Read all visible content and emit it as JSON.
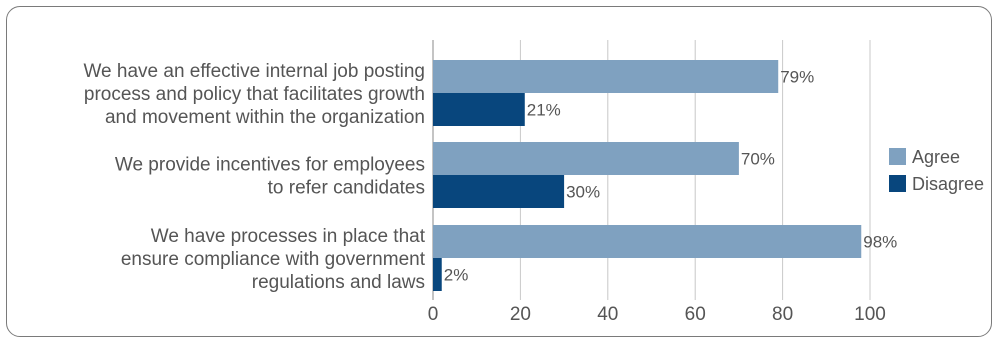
{
  "chart_data": {
    "type": "bar",
    "orientation": "horizontal",
    "categories": [
      [
        "We have an effective internal job posting",
        "process and policy that facilitates growth",
        "and movement within the organization"
      ],
      [
        "We provide incentives for employees",
        "to refer candidates"
      ],
      [
        "We have processes in place that",
        "ensure compliance with government",
        "regulations and laws"
      ]
    ],
    "series": [
      {
        "name": "Agree",
        "color": "#7fa1c0",
        "values": [
          79,
          70,
          98
        ],
        "labels": [
          "79%",
          "70%",
          "98%"
        ]
      },
      {
        "name": "Disagree",
        "color": "#08467d",
        "values": [
          21,
          30,
          2
        ],
        "labels": [
          "21%",
          "30%",
          "2%"
        ]
      }
    ],
    "xlim": [
      0,
      100
    ],
    "xticks": [
      0,
      20,
      40,
      60,
      80,
      100
    ],
    "grid": true,
    "legend_position": "right",
    "title": "",
    "xlabel": "",
    "ylabel": ""
  }
}
